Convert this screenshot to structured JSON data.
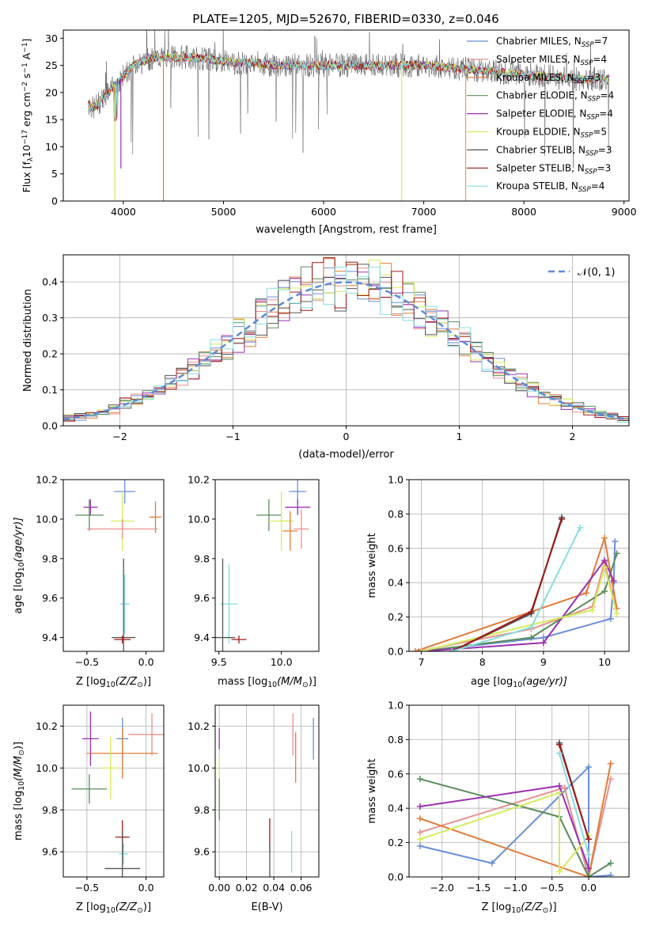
{
  "figure": {
    "title": "PLATE=1205, MJD=52670, FIBERID=0330, z=0.046"
  },
  "series_styles": [
    {
      "name": "Chabrier MILES",
      "n_label": "7",
      "color": "#6b8ed8"
    },
    {
      "name": "Salpeter MILES",
      "n_label": "4",
      "color": "#e8908c"
    },
    {
      "name": "Kroupa MILES",
      "n_label": "3",
      "color": "#e07b39"
    },
    {
      "name": "Chabrier ELODIE",
      "n_label": "4",
      "color": "#5a8c5a"
    },
    {
      "name": "Salpeter ELODIE",
      "n_label": "4",
      "color": "#9b30b0"
    },
    {
      "name": "Kroupa ELODIE",
      "n_label": "5",
      "color": "#d4ec5c"
    },
    {
      "name": "Chabrier STELIB",
      "n_label": "3",
      "color": "#555555"
    },
    {
      "name": "Salpeter STELIB",
      "n_label": "3",
      "color": "#a01818"
    },
    {
      "name": "Kroupa STELIB",
      "n_label": "4",
      "color": "#86dde0"
    }
  ],
  "chart_data": [
    {
      "id": "spectrum",
      "type": "line",
      "xlabel": "wavelength [Angstrom, rest frame]",
      "ylabel": "Flux [f",
      "ylabel_parts": [
        "Flux [f",
        "λ",
        "10",
        "−17",
        " erg cm",
        "−2",
        " s",
        "−1",
        " A",
        "−1",
        "]"
      ],
      "xlim": [
        3400,
        9050
      ],
      "ylim": [
        0,
        31.5
      ],
      "xticks": [
        4000,
        5000,
        6000,
        7000,
        8000,
        9000
      ],
      "yticks": [
        0,
        5,
        10,
        15,
        20,
        25,
        30
      ],
      "legend_location": "top-right",
      "n_prefix": "N",
      "n_sub": "SSP",
      "continuum": {
        "x": [
          3650,
          3700,
          3800,
          3900,
          4000,
          4100,
          4300,
          4500,
          4700,
          4900,
          5100,
          5300,
          5500,
          5800,
          6100,
          6400,
          6700,
          7000,
          7300,
          7600,
          7900,
          8200,
          8500,
          8800
        ],
        "y": [
          18,
          17,
          19,
          21,
          23,
          25,
          26.5,
          26.5,
          26.5,
          26,
          25.5,
          25.5,
          25,
          25,
          25,
          25,
          25,
          25,
          24.5,
          24,
          23.5,
          23,
          22.5,
          22.5
        ]
      }
    },
    {
      "id": "residuals",
      "type": "histogram",
      "xlabel": "(data-model)/error",
      "ylabel": "Normed distribution",
      "xlim": [
        -2.5,
        2.5
      ],
      "ylim": [
        0,
        0.475
      ],
      "xticks": [
        -2,
        -1,
        0,
        1,
        2
      ],
      "yticks": [
        0.0,
        0.1,
        0.2,
        0.3,
        0.4
      ],
      "grid": true,
      "legend_label": "𝒩(0, 1)",
      "gaussian": {
        "mu": 0,
        "sigma": 1
      },
      "bin_width": 0.1
    },
    {
      "id": "age-vs-Z",
      "type": "errorbar",
      "xlabel": "Z [log",
      "xlabel_parts": [
        "Z [log",
        "10",
        "(Z/Z",
        "⊙",
        ")]"
      ],
      "ylabel_parts": [
        "age  [log",
        "10",
        "(age/yr)]"
      ],
      "xlim": [
        -0.7,
        0.15
      ],
      "ylim": [
        9.33,
        10.2
      ],
      "xticks": [
        -0.5,
        0.0
      ],
      "yticks": [
        9.4,
        9.6,
        9.8,
        10.0,
        10.2
      ],
      "points": [
        {
          "s": 0,
          "x": -0.18,
          "y": 10.14,
          "xe": 0.09,
          "ye": 0.06
        },
        {
          "s": 4,
          "x": -0.47,
          "y": 10.06,
          "xe": 0.06,
          "ye": 0.04
        },
        {
          "s": 3,
          "x": -0.48,
          "y": 10.02,
          "xe": 0.12,
          "ye": 0.08
        },
        {
          "s": 5,
          "x": -0.2,
          "y": 9.99,
          "xe": 0.1,
          "ye": 0.15
        },
        {
          "s": 2,
          "x": 0.08,
          "y": 10.01,
          "xe": 0.05,
          "ye": 0.08
        },
        {
          "s": 1,
          "x": -0.2,
          "y": 9.95,
          "xe": 0.3,
          "ye": 0.05
        },
        {
          "s": 8,
          "x": -0.18,
          "y": 9.57,
          "xe": 0.04,
          "ye": 0.15
        },
        {
          "s": 6,
          "x": -0.19,
          "y": 9.4,
          "xe": 0.1,
          "ye": 0.4
        },
        {
          "s": 7,
          "x": -0.2,
          "y": 9.39,
          "xe": 0.07,
          "ye": 0.02
        }
      ]
    },
    {
      "id": "age-vs-mass",
      "type": "errorbar",
      "xlabel_parts": [
        "mass [log",
        "10",
        "(M/M",
        "⊙",
        ")]"
      ],
      "xlim": [
        9.47,
        10.3
      ],
      "ylim": [
        9.33,
        10.2
      ],
      "xticks": [
        9.5,
        10.0
      ],
      "yticks": [
        9.4,
        9.6,
        9.8,
        10.0,
        10.2
      ],
      "points": [
        {
          "s": 0,
          "x": 10.13,
          "y": 10.14,
          "xe": 0.07,
          "ye": 0.06
        },
        {
          "s": 4,
          "x": 10.13,
          "y": 10.06,
          "xe": 0.1,
          "ye": 0.04
        },
        {
          "s": 3,
          "x": 9.9,
          "y": 10.02,
          "xe": 0.1,
          "ye": 0.08
        },
        {
          "s": 5,
          "x": 10.0,
          "y": 9.99,
          "xe": 0.1,
          "ye": 0.15
        },
        {
          "s": 2,
          "x": 10.07,
          "y": 9.94,
          "xe": 0.06,
          "ye": 0.1
        },
        {
          "s": 1,
          "x": 10.16,
          "y": 9.95,
          "xe": 0.06,
          "ye": 0.1
        },
        {
          "s": 8,
          "x": 9.58,
          "y": 9.57,
          "xe": 0.07,
          "ye": 0.2
        },
        {
          "s": 6,
          "x": 9.53,
          "y": 9.4,
          "xe": 0.1,
          "ye": 0.4
        },
        {
          "s": 7,
          "x": 9.66,
          "y": 9.39,
          "xe": 0.06,
          "ye": 0.02
        }
      ]
    },
    {
      "id": "weight-vs-age",
      "type": "line",
      "xlabel_parts": [
        "age  [log",
        "10",
        "(age/yr)]"
      ],
      "ylabel": "mass weight",
      "xlim": [
        6.8,
        10.4
      ],
      "ylim": [
        0,
        1.0
      ],
      "xticks": [
        7,
        8,
        9,
        10
      ],
      "yticks": [
        0.0,
        0.2,
        0.4,
        0.6,
        0.8,
        1.0
      ],
      "grid": true,
      "series": [
        {
          "s": 0,
          "x": [
            7.0,
            9.0,
            10.1,
            10.15,
            10.17
          ],
          "y": [
            0.0,
            0.08,
            0.19,
            0.4,
            0.64
          ]
        },
        {
          "s": 1,
          "x": [
            6.95,
            8.8,
            9.8,
            10.0,
            10.2
          ],
          "y": [
            0.0,
            0.13,
            0.26,
            0.52,
            0.22
          ]
        },
        {
          "s": 2,
          "x": [
            6.9,
            9.7,
            10.0,
            10.2
          ],
          "y": [
            0.0,
            0.34,
            0.66,
            0.25
          ]
        },
        {
          "s": 3,
          "x": [
            7.0,
            8.8,
            10.0,
            10.2
          ],
          "y": [
            0.0,
            0.08,
            0.35,
            0.57
          ]
        },
        {
          "s": 4,
          "x": [
            7.0,
            9.0,
            10.0,
            10.15
          ],
          "y": [
            0.0,
            0.05,
            0.53,
            0.41
          ]
        },
        {
          "s": 5,
          "x": [
            7.0,
            9.8,
            10.0,
            10.2
          ],
          "y": [
            0.0,
            0.24,
            0.49,
            0.22
          ]
        },
        {
          "s": 6,
          "x": [
            7.5,
            8.8,
            9.3
          ],
          "y": [
            0.0,
            0.22,
            0.78
          ]
        },
        {
          "s": 7,
          "x": [
            7.5,
            8.8,
            9.3
          ],
          "y": [
            0.0,
            0.23,
            0.77
          ]
        },
        {
          "s": 8,
          "x": [
            7.5,
            8.8,
            9.6
          ],
          "y": [
            0.0,
            0.14,
            0.72
          ]
        }
      ]
    },
    {
      "id": "mass-vs-Z",
      "type": "errorbar",
      "xlabel_parts": [
        "Z [log",
        "10",
        "(Z/Z",
        "⊙",
        ")]"
      ],
      "ylabel_parts": [
        "mass [log",
        "10",
        "(M/M",
        "⊙",
        ")]"
      ],
      "xlim": [
        -0.7,
        0.15
      ],
      "ylim": [
        9.48,
        10.3
      ],
      "xticks": [
        -0.5,
        0.0
      ],
      "yticks": [
        9.6,
        9.8,
        10.0,
        10.2
      ],
      "grid": true,
      "points": [
        {
          "s": 1,
          "x": 0.05,
          "y": 10.16,
          "xe": 0.2,
          "ye": 0.1
        },
        {
          "s": 4,
          "x": -0.47,
          "y": 10.14,
          "xe": 0.07,
          "ye": 0.13
        },
        {
          "s": 0,
          "x": -0.2,
          "y": 10.14,
          "xe": 0.05,
          "ye": 0.1
        },
        {
          "s": 2,
          "x": -0.2,
          "y": 10.07,
          "xe": 0.3,
          "ye": 0.12
        },
        {
          "s": 5,
          "x": -0.3,
          "y": 10.0,
          "xe": 0.08,
          "ye": 0.15
        },
        {
          "s": 3,
          "x": -0.48,
          "y": 9.9,
          "xe": 0.15,
          "ye": 0.07
        },
        {
          "s": 7,
          "x": -0.2,
          "y": 9.67,
          "xe": 0.06,
          "ye": 0.08
        },
        {
          "s": 8,
          "x": -0.19,
          "y": 9.59,
          "xe": 0.04,
          "ye": 0.05
        },
        {
          "s": 6,
          "x": -0.2,
          "y": 9.52,
          "xe": 0.15,
          "ye": 0.18
        }
      ]
    },
    {
      "id": "mass-vs-EBV",
      "type": "errorbar",
      "xlabel": "E(B-V)",
      "xlim": [
        -0.003,
        0.073
      ],
      "ylim": [
        9.48,
        10.3
      ],
      "xticks": [
        0.0,
        0.02,
        0.04,
        0.06
      ],
      "yticks": [
        9.6,
        9.8,
        10.0,
        10.2
      ],
      "grid": true,
      "points": [
        {
          "s": 0,
          "x": 0.069,
          "y": 10.14,
          "xe": 0,
          "ye": 0.1
        },
        {
          "s": 1,
          "x": 0.054,
          "y": 10.16,
          "xe": 0,
          "ye": 0.1
        },
        {
          "s": 4,
          "x": 0.0,
          "y": 10.14,
          "xe": 0,
          "ye": 0.05
        },
        {
          "s": 2,
          "x": 0.056,
          "y": 10.05,
          "xe": 0,
          "ye": 0.12
        },
        {
          "s": 5,
          "x": 0.0,
          "y": 9.9,
          "xe": 0,
          "ye": 0.15
        },
        {
          "s": 3,
          "x": 0.0,
          "y": 9.85,
          "xe": 0,
          "ye": 0.1
        },
        {
          "s": 7,
          "x": 0.037,
          "y": 9.68,
          "xe": 0,
          "ye": 0.08
        },
        {
          "s": 8,
          "x": 0.053,
          "y": 9.6,
          "xe": 0,
          "ye": 0.1
        },
        {
          "s": 6,
          "x": 0.037,
          "y": 9.56,
          "xe": 0,
          "ye": 0.08
        }
      ]
    },
    {
      "id": "weight-vs-Z",
      "type": "line",
      "xlabel_parts": [
        "Z [log",
        "10",
        "(Z/Z",
        "⊙",
        ")]"
      ],
      "ylabel": "mass weight",
      "xlim": [
        -2.45,
        0.55
      ],
      "ylim": [
        0,
        1.0
      ],
      "xticks": [
        -2.0,
        -1.5,
        -1.0,
        -0.5,
        0.0
      ],
      "yticks": [
        0.0,
        0.2,
        0.4,
        0.6,
        0.8,
        1.0
      ],
      "grid": true,
      "series": [
        {
          "s": 0,
          "x": [
            -2.3,
            -1.32,
            0.0,
            0.0,
            0.3
          ],
          "y": [
            0.18,
            0.08,
            0.64,
            0.0,
            0.01
          ]
        },
        {
          "s": 1,
          "x": [
            -2.3,
            -0.33,
            0.0,
            0.3
          ],
          "y": [
            0.26,
            0.52,
            0.0,
            0.57
          ]
        },
        {
          "s": 2,
          "x": [
            -2.3,
            0.0,
            0.3
          ],
          "y": [
            0.34,
            0.0,
            0.66
          ]
        },
        {
          "s": 3,
          "x": [
            -2.3,
            -0.4,
            0.0,
            0.3
          ],
          "y": [
            0.57,
            0.35,
            0.0,
            0.08
          ]
        },
        {
          "s": 4,
          "x": [
            -2.3,
            -0.4,
            0.0
          ],
          "y": [
            0.41,
            0.53,
            0.05
          ]
        },
        {
          "s": 5,
          "x": [
            -2.3,
            -0.4,
            -0.4,
            0.0
          ],
          "y": [
            0.22,
            0.49,
            0.03,
            0.24
          ]
        },
        {
          "s": 6,
          "x": [
            -0.4,
            0.0
          ],
          "y": [
            0.78,
            0.22
          ]
        },
        {
          "s": 7,
          "x": [
            -0.4,
            0.0
          ],
          "y": [
            0.77,
            0.22
          ]
        },
        {
          "s": 8,
          "x": [
            -0.4,
            0.0
          ],
          "y": [
            0.72,
            0.13
          ]
        }
      ]
    }
  ]
}
